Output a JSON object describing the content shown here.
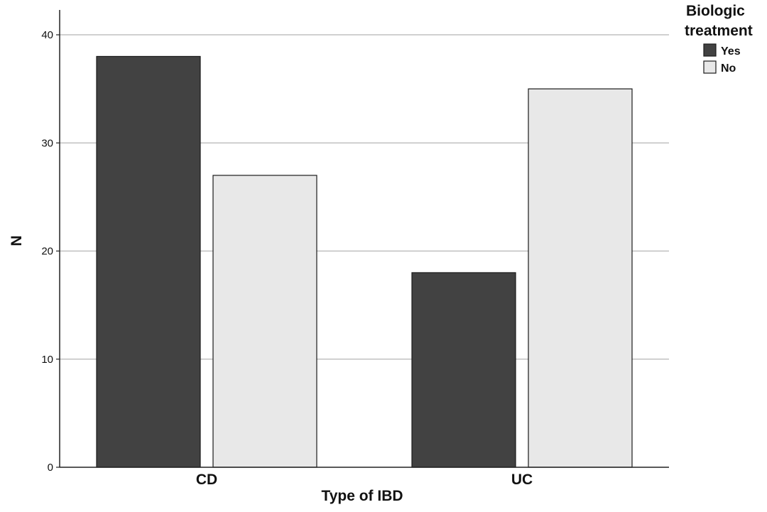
{
  "chart_data": {
    "type": "bar",
    "categories": [
      "CD",
      "UC"
    ],
    "series": [
      {
        "name": "Yes",
        "values": [
          38,
          18
        ],
        "color": "#424242"
      },
      {
        "name": "No",
        "values": [
          27,
          35
        ],
        "color": "#e8e8e8"
      }
    ],
    "xlabel": "Type of IBD",
    "ylabel": "N",
    "ylim": [
      0,
      40
    ],
    "yticks": [
      0,
      10,
      20,
      30,
      40
    ],
    "grid": true,
    "legend": {
      "title": [
        "Biologic",
        "treatment"
      ],
      "placement": "top-right"
    }
  }
}
